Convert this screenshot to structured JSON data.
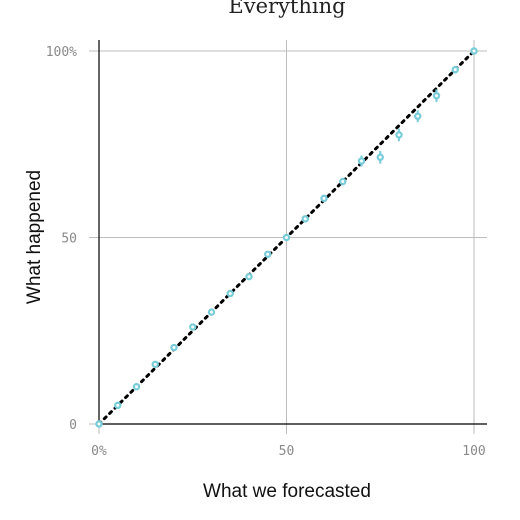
{
  "chart_data": {
    "type": "scatter",
    "title": "Everything",
    "xlabel": "What we forecasted",
    "ylabel": "What happened",
    "xlim": [
      0,
      100
    ],
    "ylim": [
      0,
      100
    ],
    "x_ticks": [
      {
        "value": 0,
        "label": "0%"
      },
      {
        "value": 50,
        "label": "50"
      },
      {
        "value": 100,
        "label": "100"
      }
    ],
    "y_ticks": [
      {
        "value": 0,
        "label": "0"
      },
      {
        "value": 50,
        "label": "50"
      },
      {
        "value": 100,
        "label": "100%"
      }
    ],
    "grid": true,
    "reference_line": {
      "style": "dotted",
      "from": [
        0,
        0
      ],
      "to": [
        100,
        100
      ],
      "color": "#000000"
    },
    "point_color": "#78ccd8",
    "points": [
      {
        "x": 0,
        "y": 0,
        "lo": 0,
        "hi": 0.5
      },
      {
        "x": 5,
        "y": 5,
        "lo": 4.5,
        "hi": 5.5
      },
      {
        "x": 10,
        "y": 10,
        "lo": 9.3,
        "hi": 10.7
      },
      {
        "x": 15,
        "y": 16,
        "lo": 15.3,
        "hi": 16.7
      },
      {
        "x": 20,
        "y": 20.5,
        "lo": 19.8,
        "hi": 21.2
      },
      {
        "x": 25,
        "y": 26,
        "lo": 25.2,
        "hi": 26.8
      },
      {
        "x": 30,
        "y": 30,
        "lo": 29.2,
        "hi": 30.8
      },
      {
        "x": 35,
        "y": 35,
        "lo": 34.2,
        "hi": 35.8
      },
      {
        "x": 40,
        "y": 39.5,
        "lo": 38.7,
        "hi": 40.3
      },
      {
        "x": 45,
        "y": 45.5,
        "lo": 44.7,
        "hi": 46.3
      },
      {
        "x": 50,
        "y": 50,
        "lo": 49.2,
        "hi": 50.8
      },
      {
        "x": 55,
        "y": 55,
        "lo": 54.1,
        "hi": 55.9
      },
      {
        "x": 60,
        "y": 60.5,
        "lo": 59.6,
        "hi": 61.4
      },
      {
        "x": 65,
        "y": 65,
        "lo": 64.0,
        "hi": 66.0
      },
      {
        "x": 70,
        "y": 70.5,
        "lo": 69.0,
        "hi": 72.0
      },
      {
        "x": 75,
        "y": 71.5,
        "lo": 69.8,
        "hi": 73.2
      },
      {
        "x": 80,
        "y": 77.5,
        "lo": 75.8,
        "hi": 79.2
      },
      {
        "x": 85,
        "y": 82.5,
        "lo": 80.9,
        "hi": 84.1
      },
      {
        "x": 90,
        "y": 88,
        "lo": 86.3,
        "hi": 89.7
      },
      {
        "x": 95,
        "y": 95,
        "lo": 94.0,
        "hi": 96.0
      },
      {
        "x": 100,
        "y": 100,
        "lo": 99.5,
        "hi": 100
      }
    ]
  }
}
